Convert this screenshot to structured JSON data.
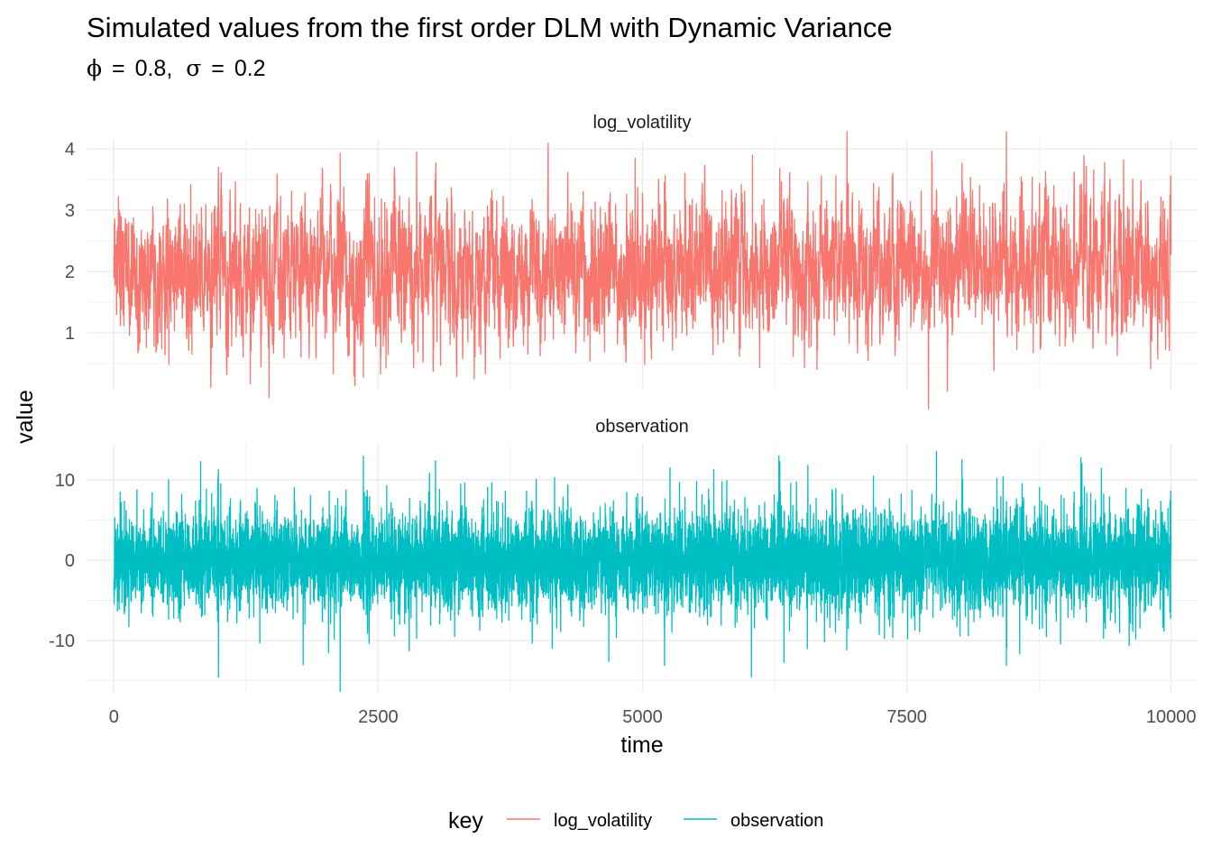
{
  "chart_data": {
    "type": "line",
    "title": "Simulated values from the first order DLM with Dynamic Variance",
    "subtitle": {
      "phi_symbol": "ϕ",
      "eq": "=",
      "phi_value": "0.8,",
      "sigma_symbol": "σ",
      "sigma_value": "0.2"
    },
    "xlabel": "time",
    "ylabel": "value",
    "x_ticks": [
      0,
      2500,
      5000,
      7500,
      10000
    ],
    "x_tick_labels": [
      "0",
      "2500",
      "5000",
      "7500",
      "10000"
    ],
    "xlim": [
      -250,
      10250
    ],
    "grid": true,
    "legend": {
      "title": "key",
      "position": "bottom",
      "entries": [
        "log_volatility",
        "observation"
      ]
    },
    "n_points": 10000,
    "facets": [
      {
        "name": "log_volatility",
        "color": "#F8766D",
        "ylim": [
          0.07,
          4.15
        ],
        "y_ticks": [
          1,
          2,
          3,
          4
        ],
        "y_tick_labels": [
          "1",
          "2",
          "3",
          "4"
        ],
        "mean": 2.0,
        "typical_range": [
          1.0,
          3.0
        ],
        "extremes": [
          {
            "x": 2140,
            "y": 3.93
          },
          {
            "x": 6040,
            "y": 3.9
          },
          {
            "x": 4930,
            "y": 3.85
          },
          {
            "x": 1290,
            "y": 0.17
          },
          {
            "x": 2270,
            "y": 0.3
          },
          {
            "x": 2360,
            "y": 0.27
          },
          {
            "x": 5020,
            "y": 0.48
          },
          {
            "x": 520,
            "y": 0.48
          }
        ]
      },
      {
        "name": "observation",
        "color": "#00BFC4",
        "ylim": [
          -16.5,
          14.5
        ],
        "y_ticks": [
          -10,
          0,
          10
        ],
        "y_tick_labels": [
          "-10",
          "0",
          "10"
        ],
        "mean": 0,
        "typical_range": [
          -5,
          5
        ],
        "extremes": [
          {
            "x": 820,
            "y": 12.3
          },
          {
            "x": 6290,
            "y": 13.0
          },
          {
            "x": 5260,
            "y": 11.5
          },
          {
            "x": 2140,
            "y": -16.3
          },
          {
            "x": 6030,
            "y": -14.5
          },
          {
            "x": 1790,
            "y": -13.0
          },
          {
            "x": 2030,
            "y": -11.5
          }
        ]
      }
    ]
  }
}
